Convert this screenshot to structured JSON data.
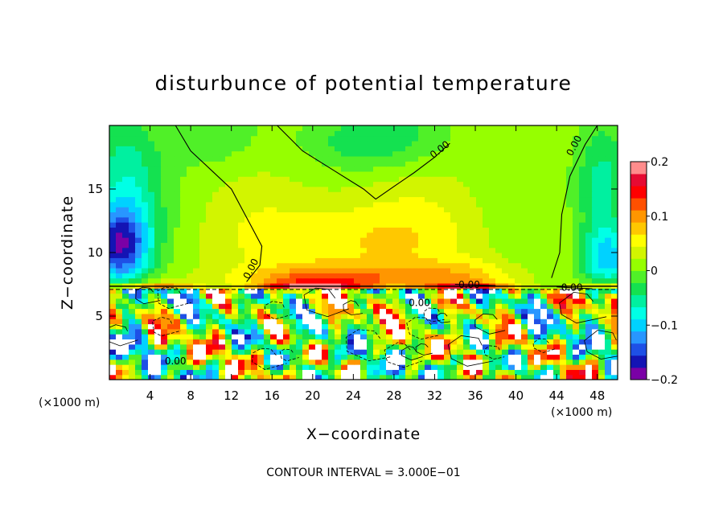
{
  "chart_data": {
    "type": "heatmap",
    "title": "disturbunce of potential temperature",
    "xlabel": "X−coordinate",
    "ylabel": "Z−coordinate",
    "x_unit_left": "(×1000 m)",
    "x_unit_right": "(×1000 m)",
    "footer": "CONTOUR INTERVAL = 3.000E−01",
    "xlim": [
      0,
      50
    ],
    "ylim": [
      0,
      20
    ],
    "x_ticks": [
      4,
      8,
      12,
      16,
      20,
      24,
      28,
      32,
      36,
      40,
      44,
      48
    ],
    "x_tick_labels": [
      "4",
      "8",
      "12",
      "16",
      "20",
      "24",
      "28",
      "32",
      "36",
      "40",
      "44",
      "48"
    ],
    "y_ticks": [
      5,
      10,
      15
    ],
    "y_tick_labels": [
      "5",
      "10",
      "15"
    ],
    "colorbar": {
      "range": [
        -0.2,
        0.2
      ],
      "ticks": [
        0.2,
        0.1,
        0,
        -0.1,
        -0.2
      ],
      "tick_labels": [
        "0.2",
        "0.1",
        "0",
        "−0.1",
        "−0.2"
      ],
      "colors": [
        "#7a00a6",
        "#1414b4",
        "#1e50e6",
        "#2896ff",
        "#00d2ff",
        "#00ffe6",
        "#00f0a0",
        "#14e150",
        "#50f028",
        "#96ff00",
        "#d2f500",
        "#ffff00",
        "#ffc800",
        "#ff9600",
        "#ff5000",
        "#ff0000",
        "#e60a32",
        "#ff8c8c"
      ]
    },
    "contours": [
      {
        "label": "0.00",
        "points": [
          [
            6.5,
            20
          ],
          [
            8,
            18
          ],
          [
            10,
            16.5
          ],
          [
            12,
            15
          ],
          [
            14,
            12
          ],
          [
            15,
            10.5
          ],
          [
            14.8,
            9
          ],
          [
            13.5,
            7.7
          ]
        ]
      },
      {
        "label": "0.00",
        "points": [
          [
            16.5,
            20
          ],
          [
            19,
            18
          ],
          [
            22,
            16.5
          ],
          [
            25,
            15
          ],
          [
            26.2,
            14.2
          ],
          [
            28,
            15.2
          ],
          [
            30,
            16.3
          ],
          [
            32,
            17.5
          ],
          [
            33.5,
            18.6
          ]
        ]
      },
      {
        "label": "0.00",
        "points": [
          [
            48,
            20
          ],
          [
            46.8,
            18.5
          ],
          [
            45.3,
            16
          ],
          [
            44.5,
            13
          ],
          [
            44.3,
            10
          ],
          [
            43.5,
            8
          ]
        ]
      },
      {
        "label": "0.00",
        "points": [
          [
            34,
            7.5
          ],
          [
            36,
            7.45
          ],
          [
            38,
            7.4
          ]
        ]
      },
      {
        "label": "0.00",
        "points": [
          [
            44,
            7.3
          ],
          [
            46,
            7.2
          ],
          [
            47.5,
            7.15
          ]
        ]
      }
    ],
    "contour_labels": [
      {
        "text": "0.00",
        "x": 14.2,
        "y": 8.6
      },
      {
        "text": "0.00",
        "x": 32.7,
        "y": 17.9
      },
      {
        "text": "0.00",
        "x": 46.0,
        "y": 18.3
      },
      {
        "text": "0.00",
        "x": 35.4,
        "y": 7.2
      },
      {
        "text": "0.00",
        "x": 45.5,
        "y": 7.0
      },
      {
        "text": "0.00",
        "x": 30.5,
        "y": 5.8
      },
      {
        "text": "0.00",
        "x": 6.5,
        "y": 1.2
      }
    ]
  }
}
